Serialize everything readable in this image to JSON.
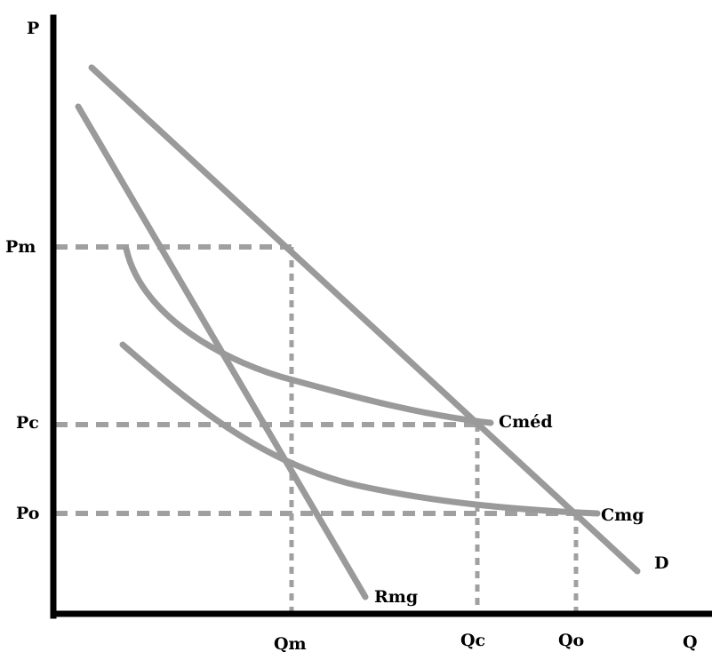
{
  "axes": {
    "y_label": "P",
    "x_label": "Q"
  },
  "price_labels": {
    "pm": "Pm",
    "pc": "Pc",
    "po": "Po"
  },
  "quantity_labels": {
    "qm": "Qm",
    "qc": "Qc",
    "qo": "Qo"
  },
  "curve_labels": {
    "demand": "D",
    "marginal_revenue": "Rmg",
    "average_cost": "Cméd",
    "marginal_cost": "Cmg"
  },
  "colors": {
    "axis": "#000000",
    "curves": "#9a9a9a",
    "guides": "#a0a0a0"
  }
}
